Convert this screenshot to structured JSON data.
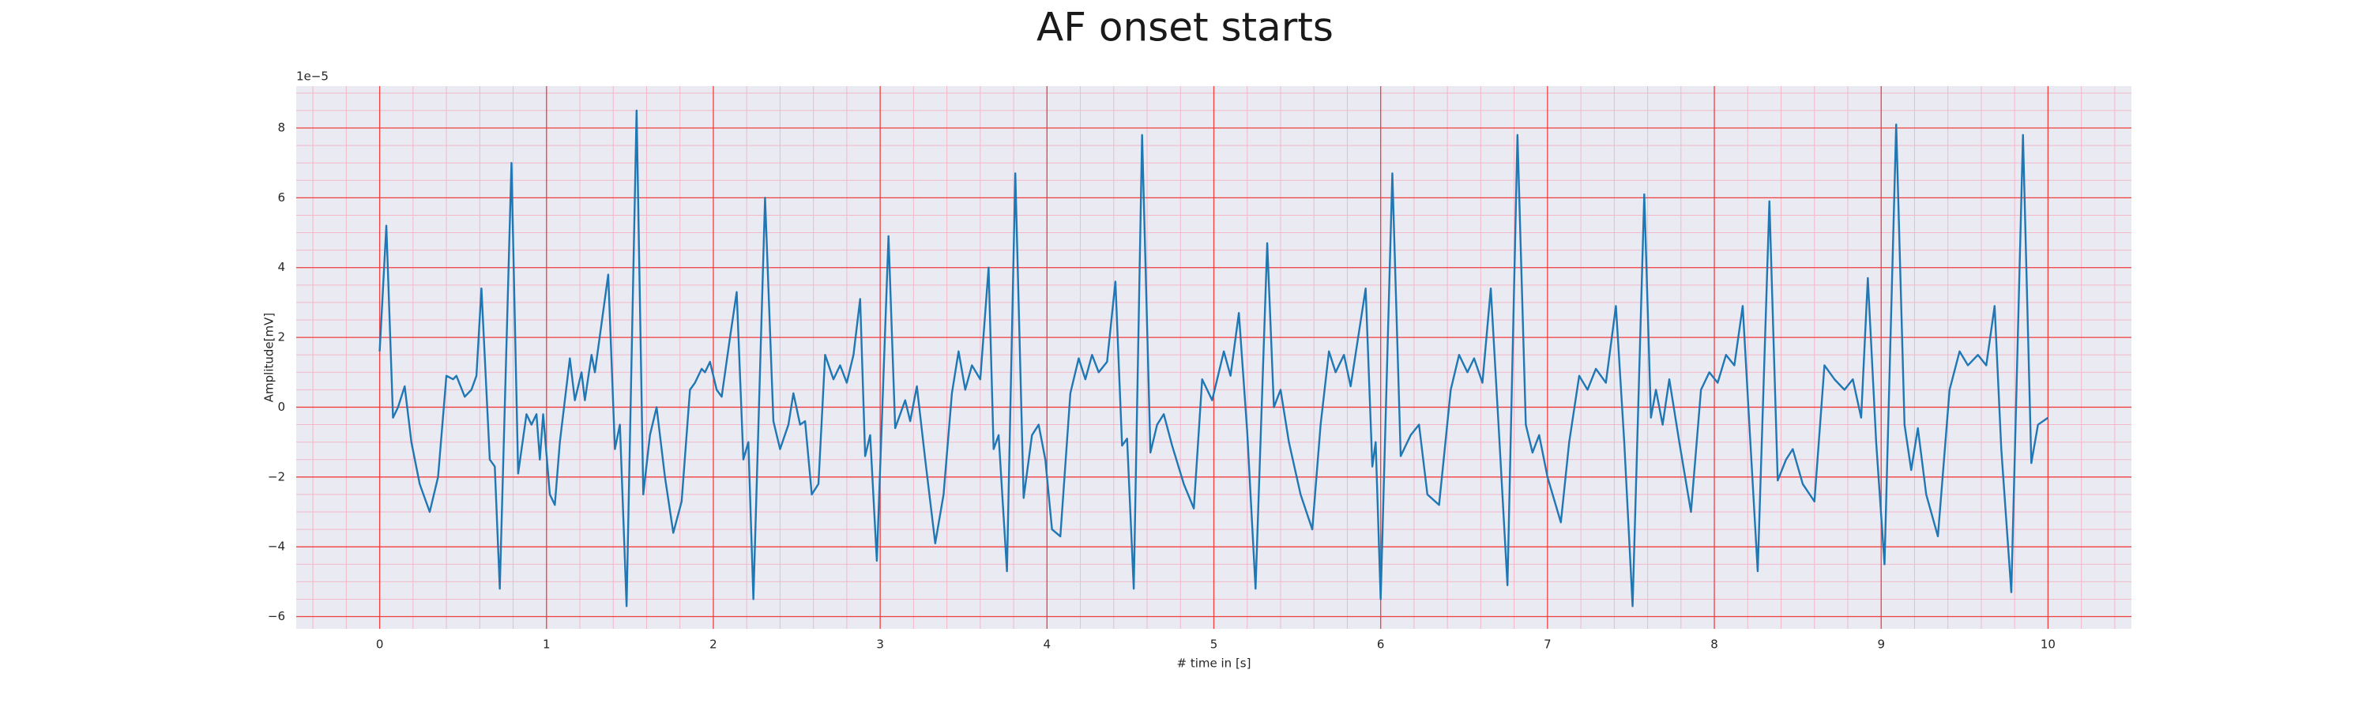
{
  "chart_data": {
    "type": "line",
    "title": "AF onset starts",
    "xlabel": "# time in [s]",
    "ylabel": "Amplitude[mV]",
    "y_offset_label": "1e−5",
    "color": "#1f77b4",
    "grid": true,
    "grid_color": "#f04040",
    "background": "#eaeaf2",
    "xlim": [
      -0.5,
      10.5
    ],
    "ylim": [
      -6.35,
      9.2
    ],
    "xticks": [
      0,
      1,
      2,
      3,
      4,
      5,
      6,
      7,
      8,
      9,
      10
    ],
    "yticks": [
      {
        "value": -6,
        "label": "−6"
      },
      {
        "value": -4,
        "label": "−4"
      },
      {
        "value": -2,
        "label": "−2"
      },
      0,
      2,
      4,
      6,
      8
    ],
    "x": [
      0.0,
      0.04,
      0.08,
      0.11,
      0.15,
      0.19,
      0.24,
      0.3,
      0.35,
      0.4,
      0.44,
      0.46,
      0.51,
      0.55,
      0.58,
      0.61,
      0.66,
      0.69,
      0.72,
      0.79,
      0.83,
      0.88,
      0.91,
      0.94,
      0.96,
      0.98,
      1.02,
      1.05,
      1.08,
      1.14,
      1.17,
      1.21,
      1.23,
      1.27,
      1.29,
      1.37,
      1.41,
      1.44,
      1.48,
      1.54,
      1.58,
      1.62,
      1.66,
      1.71,
      1.76,
      1.81,
      1.86,
      1.89,
      1.93,
      1.95,
      1.98,
      2.02,
      2.05,
      2.1,
      2.14,
      2.18,
      2.21,
      2.24,
      2.31,
      2.36,
      2.4,
      2.45,
      2.48,
      2.52,
      2.55,
      2.59,
      2.63,
      2.67,
      2.72,
      2.76,
      2.8,
      2.84,
      2.88,
      2.91,
      2.94,
      2.98,
      3.05,
      3.09,
      3.15,
      3.18,
      3.22,
      3.27,
      3.33,
      3.38,
      3.43,
      3.47,
      3.51,
      3.55,
      3.6,
      3.65,
      3.68,
      3.71,
      3.76,
      3.81,
      3.86,
      3.91,
      3.95,
      3.99,
      4.03,
      4.08,
      4.14,
      4.19,
      4.23,
      4.27,
      4.31,
      4.36,
      4.41,
      4.45,
      4.48,
      4.52,
      4.57,
      4.62,
      4.66,
      4.7,
      4.75,
      4.82,
      4.88,
      4.93,
      4.96,
      4.99,
      5.03,
      5.06,
      5.1,
      5.15,
      5.2,
      5.25,
      5.32,
      5.36,
      5.4,
      5.45,
      5.52,
      5.59,
      5.64,
      5.69,
      5.73,
      5.78,
      5.82,
      5.91,
      5.95,
      5.97,
      6.0,
      6.07,
      6.12,
      6.18,
      6.23,
      6.28,
      6.35,
      6.42,
      6.47,
      6.52,
      6.56,
      6.61,
      6.66,
      6.71,
      6.76,
      6.82,
      6.87,
      6.91,
      6.95,
      7.0,
      7.08,
      7.13,
      7.19,
      7.24,
      7.29,
      7.35,
      7.41,
      7.46,
      7.51,
      7.58,
      7.62,
      7.65,
      7.69,
      7.73,
      7.79,
      7.86,
      7.92,
      7.97,
      8.02,
      8.07,
      8.12,
      8.17,
      8.21,
      8.26,
      8.33,
      8.38,
      8.43,
      8.47,
      8.53,
      8.6,
      8.66,
      8.72,
      8.78,
      8.83,
      8.88,
      8.92,
      8.97,
      9.02,
      9.09,
      9.14,
      9.18,
      9.22,
      9.27,
      9.34,
      9.41,
      9.47,
      9.52,
      9.58,
      9.63,
      9.68,
      9.72,
      9.78,
      9.85,
      9.9,
      9.94,
      10.0
    ],
    "values": [
      1.6,
      5.2,
      -0.3,
      0.0,
      0.6,
      -1.0,
      -2.2,
      -3.0,
      -2.0,
      0.9,
      0.8,
      0.9,
      0.3,
      0.5,
      0.9,
      3.4,
      -1.5,
      -1.7,
      -5.2,
      7.0,
      -1.9,
      -0.2,
      -0.5,
      -0.2,
      -1.5,
      -0.2,
      -2.5,
      -2.8,
      -1.0,
      1.4,
      0.2,
      1.0,
      0.2,
      1.5,
      1.0,
      3.8,
      -1.2,
      -0.5,
      -5.7,
      8.5,
      -2.5,
      -0.8,
      0.0,
      -2.0,
      -3.6,
      -2.7,
      0.5,
      0.7,
      1.1,
      1.0,
      1.3,
      0.5,
      0.3,
      2.0,
      3.3,
      -1.5,
      -1.0,
      -5.5,
      6.0,
      -0.4,
      -1.2,
      -0.5,
      0.4,
      -0.5,
      -0.4,
      -2.5,
      -2.2,
      1.5,
      0.8,
      1.2,
      0.7,
      1.5,
      3.1,
      -1.4,
      -0.8,
      -4.4,
      4.9,
      -0.6,
      0.2,
      -0.4,
      0.6,
      -1.5,
      -3.9,
      -2.5,
      0.4,
      1.6,
      0.5,
      1.2,
      0.8,
      4.0,
      -1.2,
      -0.8,
      -4.7,
      6.7,
      -2.6,
      -0.8,
      -0.5,
      -1.5,
      -3.5,
      -3.7,
      0.4,
      1.4,
      0.8,
      1.5,
      1.0,
      1.3,
      3.6,
      -1.1,
      -0.9,
      -5.2,
      7.8,
      -1.3,
      -0.5,
      -0.2,
      -1.1,
      -2.2,
      -2.9,
      0.8,
      0.5,
      0.2,
      1.0,
      1.6,
      0.9,
      2.7,
      -0.7,
      -5.2,
      4.7,
      0.0,
      0.5,
      -1.0,
      -2.5,
      -3.5,
      -0.5,
      1.6,
      1.0,
      1.5,
      0.6,
      3.4,
      -1.7,
      -1.0,
      -5.5,
      6.7,
      -1.4,
      -0.8,
      -0.5,
      -2.5,
      -2.8,
      0.5,
      1.5,
      1.0,
      1.4,
      0.7,
      3.4,
      -0.8,
      -5.1,
      7.8,
      -0.5,
      -1.3,
      -0.8,
      -2.0,
      -3.3,
      -1.0,
      0.9,
      0.5,
      1.1,
      0.7,
      2.9,
      -1.0,
      -5.7,
      6.1,
      -0.3,
      0.5,
      -0.5,
      0.8,
      -1.0,
      -3.0,
      0.5,
      1.0,
      0.7,
      1.5,
      1.2,
      2.9,
      -0.5,
      -4.7,
      5.9,
      -2.1,
      -1.5,
      -1.2,
      -2.2,
      -2.7,
      1.2,
      0.8,
      0.5,
      0.8,
      -0.3,
      3.7,
      -1.0,
      -4.5,
      8.1,
      -0.5,
      -1.8,
      -0.6,
      -2.5,
      -3.7,
      0.5,
      1.6,
      1.2,
      1.5,
      1.2,
      2.9,
      -1.2,
      -5.3,
      7.8,
      -1.6,
      -0.5,
      -0.3
    ]
  }
}
